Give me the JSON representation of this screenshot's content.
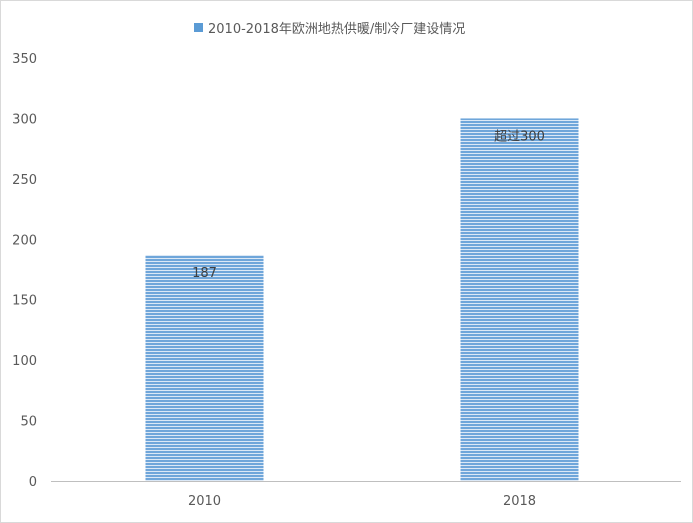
{
  "chart_data": {
    "type": "bar",
    "title": "",
    "legend": {
      "label": "2010-2018年欧洲地热供暖/制冷厂建设情况",
      "position": "top"
    },
    "categories": [
      "2010",
      "2018"
    ],
    "series": [
      {
        "name": "2010-2018年欧洲地热供暖/制冷厂建设情况",
        "values": [
          187,
          300
        ]
      }
    ],
    "data_labels": [
      "187",
      "超过300"
    ],
    "ylim": [
      0,
      350
    ],
    "yticks": [
      0,
      50,
      100,
      150,
      200,
      250,
      300,
      350
    ],
    "grid": false,
    "colors": {
      "bar": "#5b9bd5",
      "bar_stripe": "#dbe8f6",
      "axis": "#bfbfbf"
    }
  }
}
